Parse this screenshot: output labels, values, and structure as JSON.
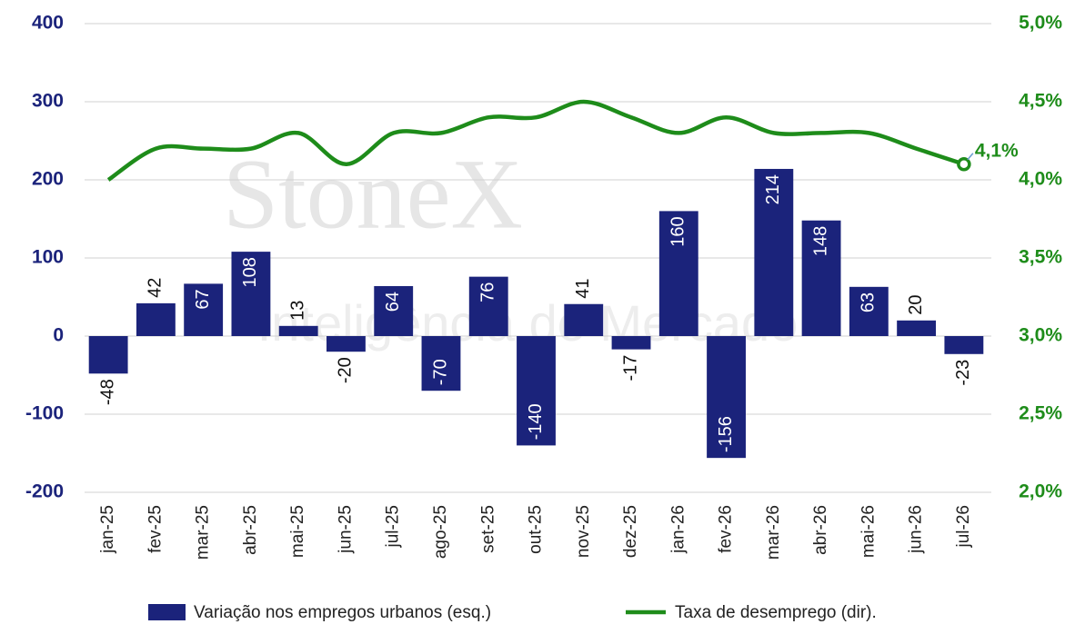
{
  "chart_data": {
    "type": "bar-line",
    "watermark": "StoneX",
    "watermark_subtitle": "Inteligência de Mercado",
    "categories": [
      "jan-25",
      "fev-25",
      "mar-25",
      "abr-25",
      "mai-25",
      "jun-25",
      "jul-25",
      "ago-25",
      "set-25",
      "out-25",
      "nov-25",
      "dez-25",
      "jan-26",
      "fev-26",
      "mar-26",
      "abr-26",
      "mai-26",
      "jun-26",
      "jul-26"
    ],
    "series": [
      {
        "name": "Variação nos empregos urbanos (esq.)",
        "color": "#1b237b",
        "type": "bar",
        "values": [
          -48,
          42,
          67,
          108,
          13,
          -20,
          64,
          -70,
          76,
          -140,
          41,
          -17,
          160,
          -156,
          214,
          148,
          63,
          20,
          -23
        ]
      },
      {
        "name": "Taxa de desemprego (dir).",
        "color": "#1e8c1a",
        "type": "line",
        "axis": "y2",
        "values": [
          4.0,
          4.2,
          4.2,
          4.2,
          4.3,
          4.1,
          4.3,
          4.3,
          4.4,
          4.4,
          4.5,
          4.4,
          4.3,
          4.4,
          4.3,
          4.3,
          4.3,
          4.2,
          4.1
        ],
        "value_labels": [
          null,
          null,
          null,
          null,
          null,
          null,
          null,
          null,
          null,
          null,
          null,
          null,
          null,
          null,
          null,
          null,
          null,
          null,
          "4,1%"
        ]
      }
    ],
    "ylim": [
      -200,
      400
    ],
    "yticks": [
      -200,
      -100,
      0,
      100,
      200,
      300,
      400
    ],
    "y2lim": [
      2.0,
      5.0
    ],
    "y2ticks": [
      {
        "value": 2.0,
        "label": "2,0%"
      },
      {
        "value": 2.5,
        "label": "2,5%"
      },
      {
        "value": 3.0,
        "label": "3,0%"
      },
      {
        "value": 3.5,
        "label": "3,5%"
      },
      {
        "value": 4.0,
        "label": "4,0%"
      },
      {
        "value": 4.5,
        "label": "4,5%"
      },
      {
        "value": 5.0,
        "label": "5,0%"
      }
    ],
    "grid": true,
    "legend": "bottom"
  }
}
